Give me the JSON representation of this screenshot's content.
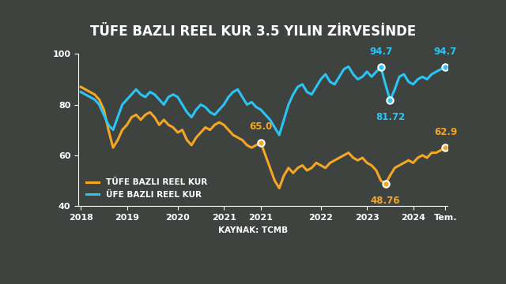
{
  "chart_data": {
    "type": "line",
    "title": "TÜFE BAZLI REEL KUR 3.5 YILIN ZİRVESİNDE",
    "source": "KAYNAK: TCMB",
    "categories": [
      "2018",
      null,
      null,
      null,
      null,
      null,
      null,
      null,
      null,
      null,
      "2019",
      null,
      null,
      null,
      null,
      null,
      null,
      null,
      null,
      null,
      null,
      "2020",
      null,
      null,
      null,
      null,
      null,
      null,
      null,
      null,
      null,
      "2021",
      null,
      null,
      null,
      null,
      null,
      null,
      null,
      "2021",
      null,
      null,
      null,
      null,
      null,
      null,
      null,
      null,
      null,
      null,
      null,
      null,
      "2022",
      null,
      null,
      null,
      null,
      null,
      null,
      null,
      null,
      null,
      "2023",
      null,
      null,
      null,
      null,
      null,
      null,
      null,
      null,
      null,
      "2024",
      null,
      null,
      null,
      null,
      null,
      null,
      "Tem."
    ],
    "series": [
      {
        "name": "TÜFE BAZLI REEL KUR",
        "color": "#f5a623",
        "values": [
          87,
          86,
          85,
          84,
          82,
          78,
          70,
          63,
          66,
          70,
          72,
          75,
          76,
          74,
          76,
          77,
          75,
          72,
          74,
          72,
          71,
          69,
          70,
          66,
          64,
          67,
          69,
          71,
          70,
          72,
          73,
          72,
          70,
          68,
          67,
          66,
          64,
          63,
          64,
          65.0,
          60,
          55,
          50,
          47,
          52,
          55,
          53,
          55,
          56,
          54,
          55,
          57,
          56,
          55,
          57,
          58,
          59,
          60,
          61,
          59,
          58,
          59,
          57,
          56,
          54,
          50,
          48.76,
          52,
          55,
          56,
          57,
          58,
          57,
          59,
          60,
          59,
          61,
          61,
          62,
          62.9
        ]
      },
      {
        "name": "ÜFE BAZLI REEL KUR",
        "color": "#29c5f6",
        "values": [
          85,
          84,
          83,
          82,
          80,
          76,
          72,
          70,
          75,
          80,
          82,
          84,
          86,
          84,
          83,
          85,
          84,
          82,
          80,
          83,
          84,
          83,
          80,
          77,
          75,
          78,
          80,
          79,
          77,
          76,
          78,
          80,
          83,
          85,
          86,
          83,
          80,
          81,
          79,
          78,
          76,
          74,
          71,
          68,
          74,
          80,
          84,
          87,
          88,
          85,
          84,
          87,
          90,
          92,
          89,
          88,
          91,
          94,
          95,
          92,
          90,
          91,
          93,
          91,
          93,
          94.7,
          88,
          81.72,
          86,
          91,
          92,
          89,
          88,
          90,
          91,
          90,
          92,
          93,
          94,
          94.7
        ]
      }
    ],
    "annotations": [
      {
        "series": 0,
        "point": 39,
        "text": "65.0"
      },
      {
        "series": 0,
        "point": 66,
        "text": "48.76"
      },
      {
        "series": 0,
        "point": 79,
        "text": "62.9"
      },
      {
        "series": 1,
        "point": 65,
        "text": "94.7"
      },
      {
        "series": 1,
        "point": 67,
        "text": "81.72"
      },
      {
        "series": 1,
        "point": 79,
        "text": "94.7"
      }
    ],
    "ylim": [
      40,
      100
    ],
    "yticks": [
      40,
      60,
      80,
      100
    ],
    "grid": false,
    "legend": "lower left"
  }
}
